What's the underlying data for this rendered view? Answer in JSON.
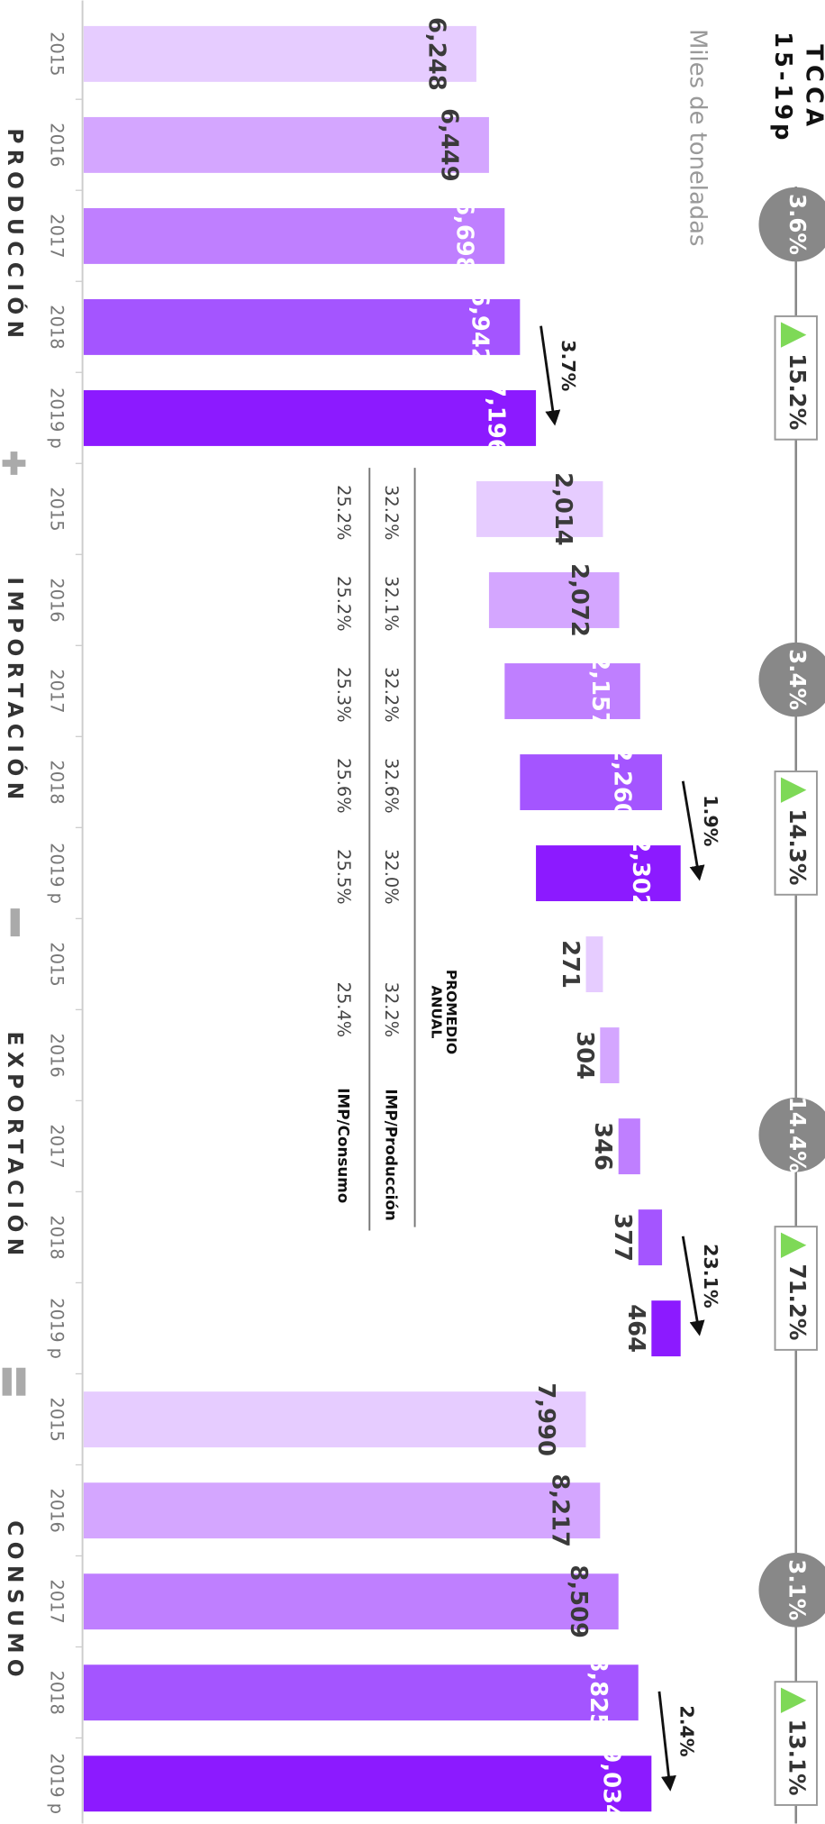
{
  "chart_data": {
    "type": "waterfall",
    "title": [
      "TCCA",
      "15-19p"
    ],
    "subtitle": "Miles de toneladas",
    "ylim": [
      0,
      11000
    ],
    "colors": [
      "#e6ccff",
      "#d4a6ff",
      "#bf7fff",
      "#a455ff",
      "#8c1aff"
    ],
    "groups": [
      {
        "name": "PRODUCCIÓN",
        "categories": [
          "2015",
          "2016",
          "2017",
          "2018",
          "2019 p"
        ],
        "values": [
          6248,
          6449,
          6698,
          6942,
          7196
        ],
        "value_labels": [
          "6,248",
          "6,449",
          "6,698",
          "6,942",
          "7,196"
        ],
        "cagr": 3.6,
        "cagr_label": "3.6%",
        "total_change": 15.2,
        "total_change_label": "15.2%",
        "last_change": 3.7,
        "last_change_label": "3.7%"
      },
      {
        "name": "IMPORTACIÓN",
        "categories": [
          "2015",
          "2016",
          "2017",
          "2018",
          "2019 p"
        ],
        "values": [
          2014,
          2072,
          2157,
          2260,
          2302
        ],
        "value_labels": [
          "2,014",
          "2,072",
          "2,157",
          "2,260",
          "2,302"
        ],
        "cagr": 3.4,
        "cagr_label": "3.4%",
        "total_change": 14.3,
        "total_change_label": "14.3%",
        "last_change": 1.9,
        "last_change_label": "1.9%"
      },
      {
        "name": "EXPORTACIÓN",
        "categories": [
          "2015",
          "2016",
          "2017",
          "2018",
          "2019 p"
        ],
        "values": [
          271,
          304,
          346,
          377,
          464
        ],
        "cagr": 14.4,
        "cagr_label": "14.4%",
        "total_change": 71.2,
        "total_change_label": "71.2%",
        "last_change": 23.1,
        "last_change_label": "23.1%"
      },
      {
        "name": "CONSUMO",
        "categories": [
          "2015",
          "2016",
          "2017",
          "2018",
          "2019 p"
        ],
        "values": [
          7990,
          8217,
          8509,
          8825,
          9034
        ],
        "value_labels": [
          "7,990",
          "8,217",
          "8,509",
          "8,825",
          "9,034"
        ],
        "cagr": 3.1,
        "cagr_label": "3.1%",
        "total_change": 13.1,
        "total_change_label": "13.1%",
        "last_change": 2.4,
        "last_change_label": "2.4%"
      }
    ],
    "ratios": {
      "title": [
        "PROMEDIO",
        "ANUAL"
      ],
      "rows": [
        {
          "name": "IMP/Producción",
          "values": [
            32.2,
            32.1,
            32.2,
            32.6,
            32.0
          ],
          "value_labels": [
            "32.2%",
            "32.1%",
            "32.2%",
            "32.6%",
            "32.0%"
          ],
          "average": 32.2,
          "average_label": "32.2%"
        },
        {
          "name": "IMP/Consumo",
          "values": [
            25.2,
            25.2,
            25.3,
            25.6,
            25.5
          ],
          "value_labels": [
            "25.2%",
            "25.2%",
            "25.3%",
            "25.6%",
            "25.5%"
          ],
          "average": 25.4,
          "average_label": "25.4%"
        }
      ]
    }
  }
}
